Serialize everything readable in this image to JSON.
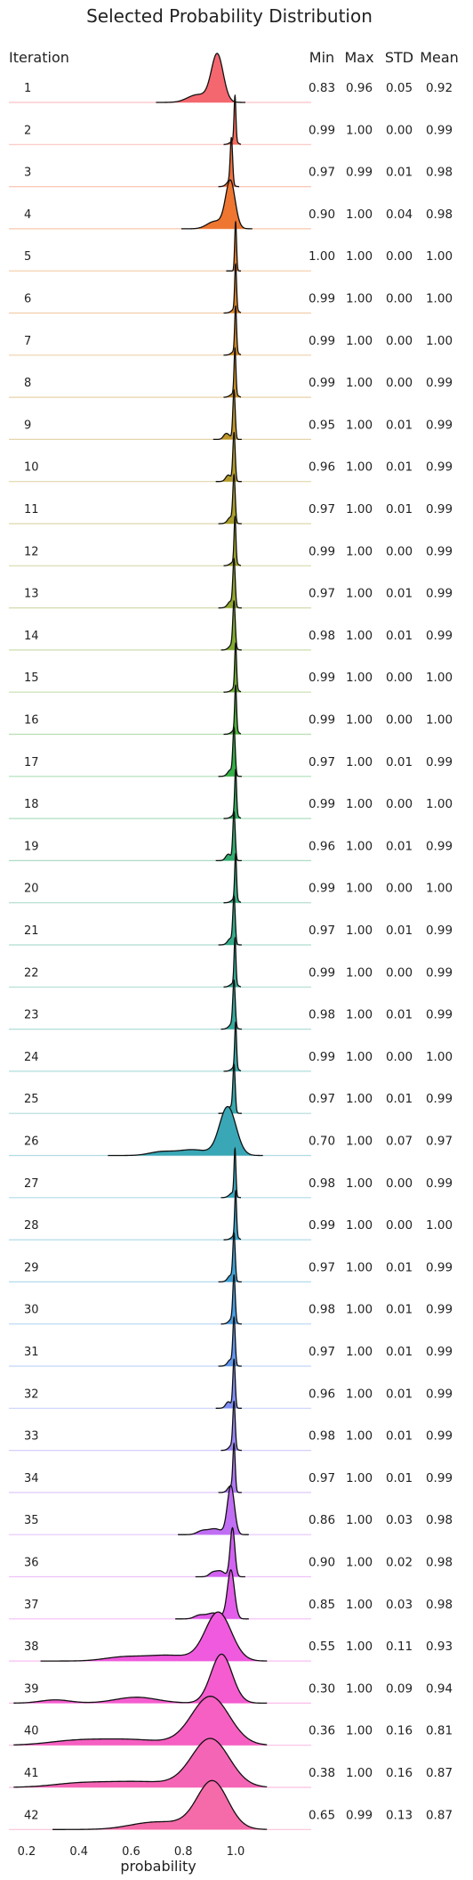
{
  "chart_data": {
    "type": "ridgeline",
    "title": "Selected Probability Distribution",
    "row_header": "Iteration",
    "stat_headers": [
      "Min",
      "Max",
      "STD",
      "Mean"
    ],
    "xlabel": "probability",
    "xlim": [
      0.2,
      1.1
    ],
    "xticks": [
      "0.2",
      "0.4",
      "0.6",
      "0.8",
      "1.0"
    ],
    "grid": false,
    "series": [
      {
        "label": "1",
        "min": "0.83",
        "max": "0.96",
        "std": "0.05",
        "mean": "0.92",
        "color": "#f4676f"
      },
      {
        "label": "2",
        "min": "0.99",
        "max": "1.00",
        "std": "0.00",
        "mean": "0.99",
        "color": "#f36c5e"
      },
      {
        "label": "3",
        "min": "0.97",
        "max": "0.99",
        "std": "0.01",
        "mean": "0.98",
        "color": "#f0703e"
      },
      {
        "label": "4",
        "min": "0.90",
        "max": "1.00",
        "std": "0.04",
        "mean": "0.98",
        "color": "#ee7630"
      },
      {
        "label": "5",
        "min": "1.00",
        "max": "1.00",
        "std": "0.00",
        "mean": "1.00",
        "color": "#e77d28"
      },
      {
        "label": "6",
        "min": "0.99",
        "max": "1.00",
        "std": "0.00",
        "mean": "1.00",
        "color": "#dd8427"
      },
      {
        "label": "7",
        "min": "0.99",
        "max": "1.00",
        "std": "0.00",
        "mean": "1.00",
        "color": "#d38a27"
      },
      {
        "label": "8",
        "min": "0.99",
        "max": "1.00",
        "std": "0.00",
        "mean": "0.99",
        "color": "#c99028"
      },
      {
        "label": "9",
        "min": "0.95",
        "max": "1.00",
        "std": "0.01",
        "mean": "0.99",
        "color": "#bf9529"
      },
      {
        "label": "10",
        "min": "0.96",
        "max": "1.00",
        "std": "0.01",
        "mean": "0.99",
        "color": "#b49a2a"
      },
      {
        "label": "11",
        "min": "0.97",
        "max": "1.00",
        "std": "0.01",
        "mean": "0.99",
        "color": "#a99e2b"
      },
      {
        "label": "12",
        "min": "0.99",
        "max": "1.00",
        "std": "0.00",
        "mean": "0.99",
        "color": "#9da22c"
      },
      {
        "label": "13",
        "min": "0.97",
        "max": "1.00",
        "std": "0.01",
        "mean": "0.99",
        "color": "#90a62e"
      },
      {
        "label": "14",
        "min": "0.98",
        "max": "1.00",
        "std": "0.01",
        "mean": "0.99",
        "color": "#80aa30"
      },
      {
        "label": "15",
        "min": "0.99",
        "max": "1.00",
        "std": "0.00",
        "mean": "1.00",
        "color": "#6cae33"
      },
      {
        "label": "16",
        "min": "0.99",
        "max": "1.00",
        "std": "0.00",
        "mean": "1.00",
        "color": "#4fb23a"
      },
      {
        "label": "17",
        "min": "0.97",
        "max": "1.00",
        "std": "0.01",
        "mean": "0.99",
        "color": "#34b046"
      },
      {
        "label": "18",
        "min": "0.99",
        "max": "1.00",
        "std": "0.00",
        "mean": "1.00",
        "color": "#32ae5e"
      },
      {
        "label": "19",
        "min": "0.96",
        "max": "1.00",
        "std": "0.01",
        "mean": "0.99",
        "color": "#33ad70"
      },
      {
        "label": "20",
        "min": "0.99",
        "max": "1.00",
        "std": "0.00",
        "mean": "1.00",
        "color": "#34ac7f"
      },
      {
        "label": "21",
        "min": "0.97",
        "max": "1.00",
        "std": "0.01",
        "mean": "0.99",
        "color": "#35ab8a"
      },
      {
        "label": "22",
        "min": "0.99",
        "max": "1.00",
        "std": "0.00",
        "mean": "0.99",
        "color": "#36aa94"
      },
      {
        "label": "23",
        "min": "0.98",
        "max": "1.00",
        "std": "0.01",
        "mean": "0.99",
        "color": "#37a99d"
      },
      {
        "label": "24",
        "min": "0.99",
        "max": "1.00",
        "std": "0.00",
        "mean": "1.00",
        "color": "#38a9a5"
      },
      {
        "label": "25",
        "min": "0.97",
        "max": "1.00",
        "std": "0.01",
        "mean": "0.99",
        "color": "#39a8ad"
      },
      {
        "label": "26",
        "min": "0.70",
        "max": "1.00",
        "std": "0.07",
        "mean": "0.97",
        "color": "#3aa7b6"
      },
      {
        "label": "27",
        "min": "0.98",
        "max": "1.00",
        "std": "0.00",
        "mean": "0.99",
        "color": "#3ba6bf"
      },
      {
        "label": "28",
        "min": "0.99",
        "max": "1.00",
        "std": "0.00",
        "mean": "1.00",
        "color": "#3da4ca"
      },
      {
        "label": "29",
        "min": "0.97",
        "max": "1.00",
        "std": "0.01",
        "mean": "0.99",
        "color": "#40a2d6"
      },
      {
        "label": "30",
        "min": "0.98",
        "max": "1.00",
        "std": "0.01",
        "mean": "0.99",
        "color": "#4a9ee4"
      },
      {
        "label": "31",
        "min": "0.97",
        "max": "1.00",
        "std": "0.01",
        "mean": "0.99",
        "color": "#6297ee"
      },
      {
        "label": "32",
        "min": "0.96",
        "max": "1.00",
        "std": "0.01",
        "mean": "0.99",
        "color": "#7f8ff4"
      },
      {
        "label": "33",
        "min": "0.98",
        "max": "1.00",
        "std": "0.01",
        "mean": "0.99",
        "color": "#9a85f4"
      },
      {
        "label": "34",
        "min": "0.97",
        "max": "1.00",
        "std": "0.01",
        "mean": "0.99",
        "color": "#ae7af4"
      },
      {
        "label": "35",
        "min": "0.86",
        "max": "1.00",
        "std": "0.03",
        "mean": "0.98",
        "color": "#c06ef4"
      },
      {
        "label": "36",
        "min": "0.90",
        "max": "1.00",
        "std": "0.02",
        "mean": "0.98",
        "color": "#d263f2"
      },
      {
        "label": "37",
        "min": "0.85",
        "max": "1.00",
        "std": "0.03",
        "mean": "0.98",
        "color": "#e35cea"
      },
      {
        "label": "38",
        "min": "0.55",
        "max": "1.00",
        "std": "0.11",
        "mean": "0.93",
        "color": "#f05ade"
      },
      {
        "label": "39",
        "min": "0.30",
        "max": "1.00",
        "std": "0.09",
        "mean": "0.94",
        "color": "#f55ccf"
      },
      {
        "label": "40",
        "min": "0.36",
        "max": "1.00",
        "std": "0.16",
        "mean": "0.81",
        "color": "#f660c2"
      },
      {
        "label": "41",
        "min": "0.38",
        "max": "1.00",
        "std": "0.16",
        "mean": "0.87",
        "color": "#f565b5"
      },
      {
        "label": "42",
        "min": "0.65",
        "max": "0.99",
        "std": "0.13",
        "mean": "0.87",
        "color": "#f56aa8"
      }
    ]
  }
}
